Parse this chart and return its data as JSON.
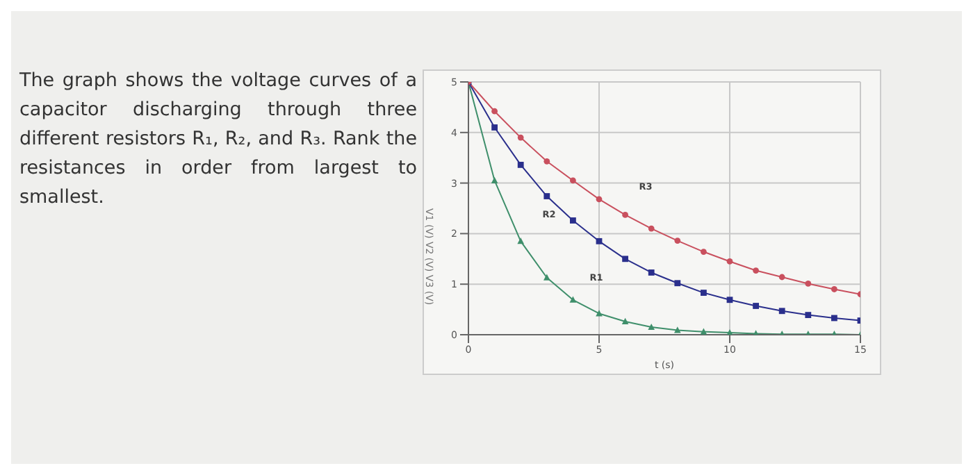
{
  "chart_data": {
    "type": "line",
    "xlabel": "t (s)",
    "ylabel": "V1 (V)  V2 (V)  V3 (V)",
    "annotations": [
      "The graph shows the voltage curves of a capacitor discharging through three different resistors R₁, R₂, and R₃. Rank the resistances in order from largest to smallest."
    ],
    "x": [
      0,
      1,
      2,
      3,
      4,
      5,
      6,
      7,
      8,
      9,
      10,
      11,
      12,
      13,
      14,
      15
    ],
    "series": [
      {
        "name": "R1",
        "color": "#3f8f6b",
        "marker": "triangle",
        "values": [
          5,
          3.05,
          1.85,
          1.13,
          0.69,
          0.42,
          0.26,
          0.15,
          0.09,
          0.06,
          0.04,
          0.02,
          0.01,
          0.01,
          0.01,
          0
        ]
      },
      {
        "name": "R2",
        "color": "#2a2f8c",
        "marker": "square",
        "values": [
          5,
          4.1,
          3.36,
          2.74,
          2.26,
          1.85,
          1.5,
          1.23,
          1.02,
          0.83,
          0.69,
          0.57,
          0.47,
          0.39,
          0.33,
          0.28
        ]
      },
      {
        "name": "R3",
        "color": "#c9505e",
        "marker": "circle",
        "values": [
          5,
          4.42,
          3.9,
          3.43,
          3.05,
          2.68,
          2.37,
          2.1,
          1.86,
          1.64,
          1.45,
          1.27,
          1.14,
          1.01,
          0.9,
          0.8
        ]
      }
    ],
    "xlim": [
      0,
      15
    ],
    "ylim": [
      0,
      5
    ],
    "xticks": [
      0,
      5,
      10,
      15
    ],
    "yticks": [
      0,
      1,
      2,
      3,
      4,
      5
    ],
    "grid": true,
    "line_style": "solid",
    "legend": false
  }
}
